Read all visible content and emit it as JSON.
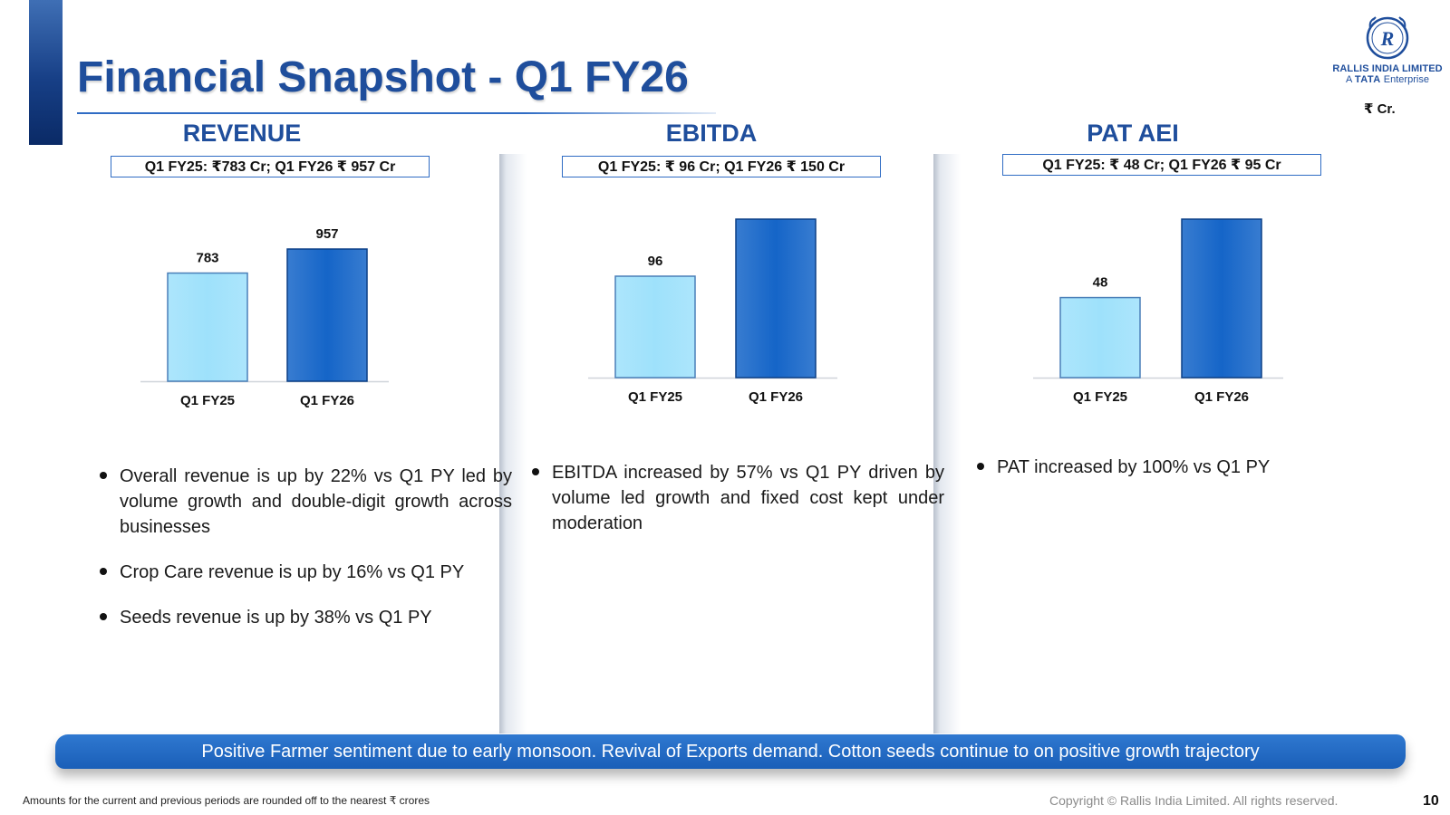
{
  "page": {
    "title": "Financial Snapshot - Q1 FY26",
    "unit_label": "₹ Cr.",
    "page_number": "10"
  },
  "logo": {
    "emblem_letter": "R",
    "company": "RALLIS INDIA LIMITED",
    "tagline_prefix": "A",
    "tagline_brand": "TATA",
    "tagline_suffix": "Enterprise"
  },
  "colors": {
    "title_blue": "#1f4e9c",
    "fy25_bar": "#9ee1fb",
    "fy26_bar": "#1565c8",
    "banner_blue": "#1a5fb8"
  },
  "panels": [
    {
      "heading": "REVENUE",
      "summary": "Q1 FY25: ₹783 Cr; Q1 FY26 ₹ 957 Cr",
      "bullets": [
        "Overall revenue is up by 22% vs Q1 PY led by volume growth and double-digit growth across businesses",
        "Crop Care revenue is up by 16% vs Q1 PY",
        "Seeds revenue is up by 38% vs Q1 PY"
      ]
    },
    {
      "heading": "EBITDA",
      "summary": "Q1 FY25: ₹ 96 Cr; Q1 FY26 ₹ 150 Cr",
      "bullets": [
        "EBITDA increased by 57% vs Q1 PY driven by volume led growth and fixed cost kept under moderation"
      ]
    },
    {
      "heading": "PAT AEI",
      "summary": "Q1 FY25: ₹ 48 Cr; Q1 FY26 ₹ 95 Cr",
      "bullets": [
        "PAT increased by 100% vs Q1 PY"
      ]
    }
  ],
  "chart_data": [
    {
      "type": "bar",
      "title": "REVENUE",
      "categories": [
        "Q1 FY25",
        "Q1 FY26"
      ],
      "values": [
        783,
        957
      ],
      "ylabel": "₹ Cr.",
      "ylim": [
        0,
        1000
      ],
      "grid": false
    },
    {
      "type": "bar",
      "title": "EBITDA",
      "categories": [
        "Q1 FY25",
        "Q1 FY26"
      ],
      "values": [
        96,
        150
      ],
      "ylabel": "₹ Cr.",
      "ylim": [
        0,
        160
      ],
      "grid": false
    },
    {
      "type": "bar",
      "title": "PAT AEI",
      "categories": [
        "Q1 FY25",
        "Q1 FY26"
      ],
      "values": [
        48,
        95
      ],
      "ylabel": "₹ Cr.",
      "ylim": [
        0,
        100
      ],
      "grid": false
    }
  ],
  "banner": "Positive Farmer sentiment due to early monsoon. Revival of Exports demand. Cotton seeds continue to on positive growth trajectory",
  "footer": {
    "note": "Amounts for the current and previous periods are rounded off to the nearest ₹ crores",
    "copyright": "Copyright © Rallis India Limited. All rights reserved."
  }
}
